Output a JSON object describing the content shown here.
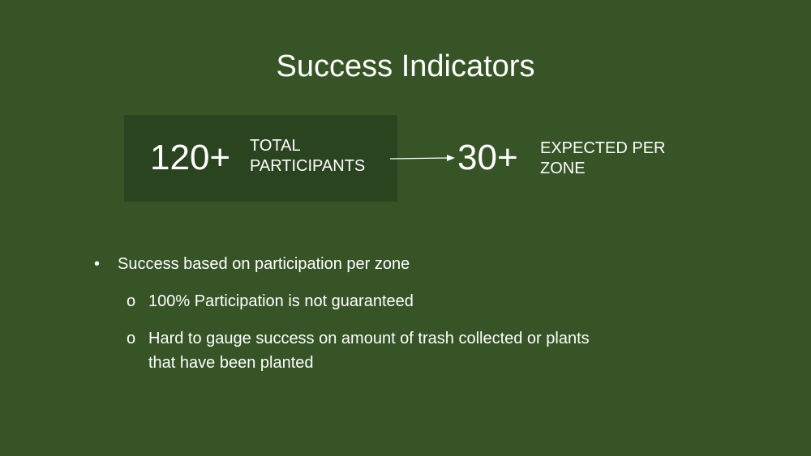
{
  "slide": {
    "title": "Success Indicators",
    "stats": {
      "total": {
        "number": "120+",
        "label_line1": "TOTAL",
        "label_line2": "PARTICIPANTS"
      },
      "per_zone": {
        "number": "30+",
        "label_line1": "EXPECTED PER",
        "label_line2": "ZONE"
      }
    },
    "bullets": {
      "main": {
        "marker": "•",
        "text": "Success based on participation per zone"
      },
      "sub1": {
        "marker": "o",
        "text": "100% Participation is not guaranteed"
      },
      "sub2": {
        "marker": "o",
        "line1": "Hard to gauge success on amount of trash collected or plants",
        "line2": "that have been planted"
      }
    },
    "colors": {
      "background": "#365426",
      "stat_box": "#2b4420",
      "text": "#ffffff"
    }
  }
}
